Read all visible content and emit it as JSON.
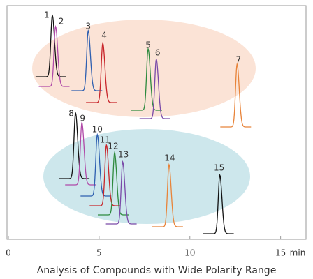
{
  "chart_data": {
    "type": "chromatogram",
    "caption": "Analysis of Compounds with Wide Polarity Range",
    "x_unit": "min",
    "xlim": [
      0,
      16.4
    ],
    "xticks": [
      0,
      5,
      10,
      15
    ],
    "peaks": [
      {
        "label": "1",
        "rt": 2.42,
        "color": "#111111"
      },
      {
        "label": "2",
        "rt": 2.6,
        "color": "#b04aa8"
      },
      {
        "label": "3",
        "rt": 4.4,
        "color": "#2e5fb0"
      },
      {
        "label": "4",
        "rt": 5.2,
        "color": "#c8262b"
      },
      {
        "label": "5",
        "rt": 7.7,
        "color": "#2e8a3e"
      },
      {
        "label": "6",
        "rt": 8.15,
        "color": "#7a4aa8"
      },
      {
        "label": "7",
        "rt": 12.6,
        "color": "#e8843a"
      },
      {
        "label": "8",
        "rt": 3.7,
        "color": "#111111"
      },
      {
        "label": "9",
        "rt": 4.05,
        "color": "#b04aa8"
      },
      {
        "label": "10",
        "rt": 4.9,
        "color": "#2e5fb0"
      },
      {
        "label": "11",
        "rt": 5.4,
        "color": "#c8262b"
      },
      {
        "label": "12",
        "rt": 5.85,
        "color": "#2e8a3e"
      },
      {
        "label": "13",
        "rt": 6.3,
        "color": "#7a4aa8"
      },
      {
        "label": "14",
        "rt": 8.85,
        "color": "#e8843a"
      },
      {
        "label": "15",
        "rt": 11.65,
        "color": "#111111"
      }
    ]
  }
}
